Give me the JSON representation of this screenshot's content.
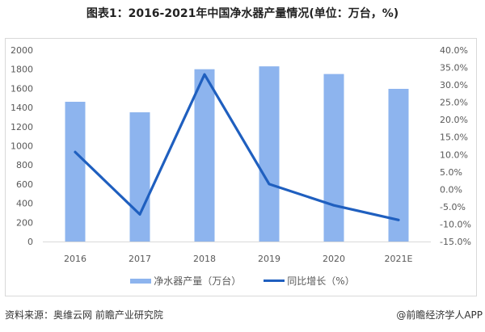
{
  "title": "图表1：2016-2021年中国净水器产量情况(单位：万台，%)",
  "legend": {
    "bar_label": "净水器产量（万台）",
    "line_label": "同比增长（%）"
  },
  "footer": {
    "source": "资料来源：奥维云网 前瞻产业研究院",
    "credit": "@前瞻经济学人APP"
  },
  "colors": {
    "bar": "#8DB4EE",
    "line": "#1F5FBF",
    "axis": "#d9d9d9",
    "tick_text": "#595959"
  },
  "chart_data": {
    "type": "bar+line",
    "title": "图表1：2016-2021年中国净水器产量情况(单位：万台，%)",
    "categories": [
      "2016",
      "2017",
      "2018",
      "2019",
      "2020",
      "2021E"
    ],
    "series": [
      {
        "name": "净水器产量（万台）",
        "type": "bar",
        "axis": "left",
        "values": [
          1460,
          1350,
          1800,
          1830,
          1750,
          1595
        ]
      },
      {
        "name": "同比增长（%）",
        "type": "line",
        "axis": "right",
        "values": [
          10.7,
          -7.2,
          33.0,
          1.5,
          -4.6,
          -8.8
        ]
      }
    ],
    "left_axis": {
      "min": 0,
      "max": 2000,
      "step": 200,
      "ticks": [
        "0",
        "200",
        "400",
        "600",
        "800",
        "1000",
        "1200",
        "1400",
        "1600",
        "1800",
        "2000"
      ]
    },
    "right_axis": {
      "min": -15,
      "max": 40,
      "step": 5,
      "ticks": [
        "-15.0%",
        "-10.0%",
        "-5.0%",
        "0.0%",
        "5.0%",
        "10.0%",
        "15.0%",
        "20.0%",
        "25.0%",
        "30.0%",
        "35.0%",
        "40.0%"
      ]
    },
    "xlabel": "",
    "ylabel": "",
    "grid": false,
    "legend_position": "bottom"
  }
}
